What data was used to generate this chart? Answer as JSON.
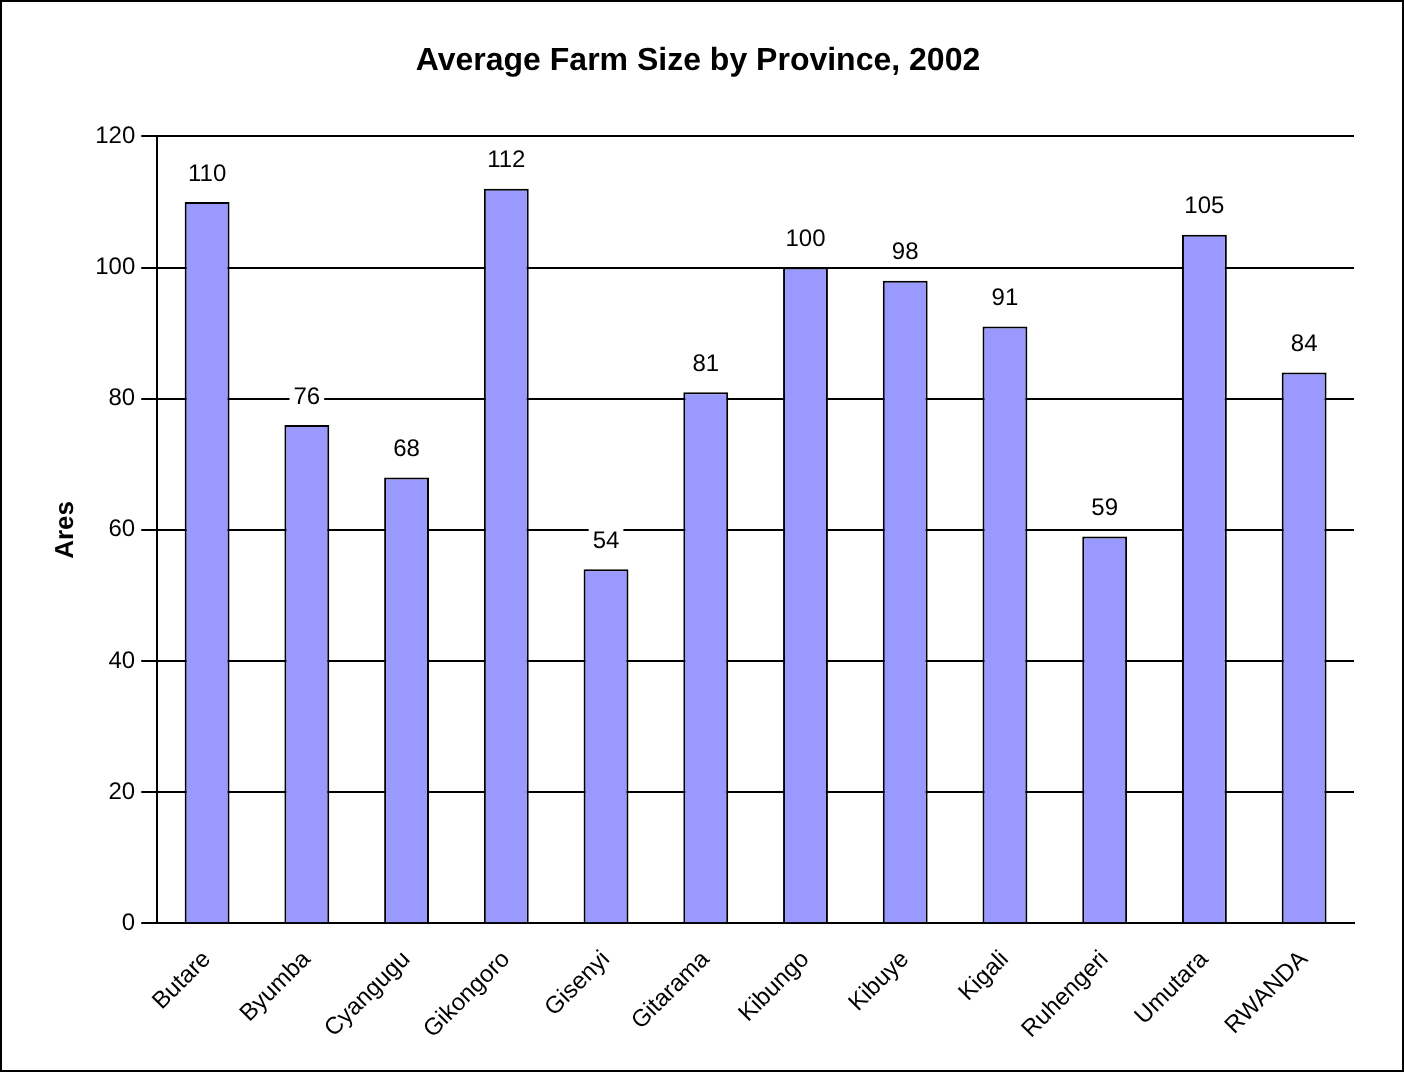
{
  "chart_data": {
    "type": "bar",
    "title": "Average Farm Size by Province, 2002",
    "ylabel": "Ares",
    "categories": [
      "Butare",
      "Byumba",
      "Cyangugu",
      "Gikongoro",
      "Gisenyi",
      "Gitarama",
      "Kibungo",
      "Kibuye",
      "Kigali",
      "Ruhengeri",
      "Umutara",
      "RWANDA"
    ],
    "values": [
      110,
      76,
      68,
      112,
      54,
      81,
      100,
      98,
      91,
      59,
      105,
      84
    ],
    "color": "#9999ff",
    "ylim": [
      0,
      120
    ],
    "yticks": [
      0,
      20,
      40,
      60,
      80,
      100,
      120
    ],
    "grid": "y",
    "data_labels": true,
    "legend": false
  }
}
